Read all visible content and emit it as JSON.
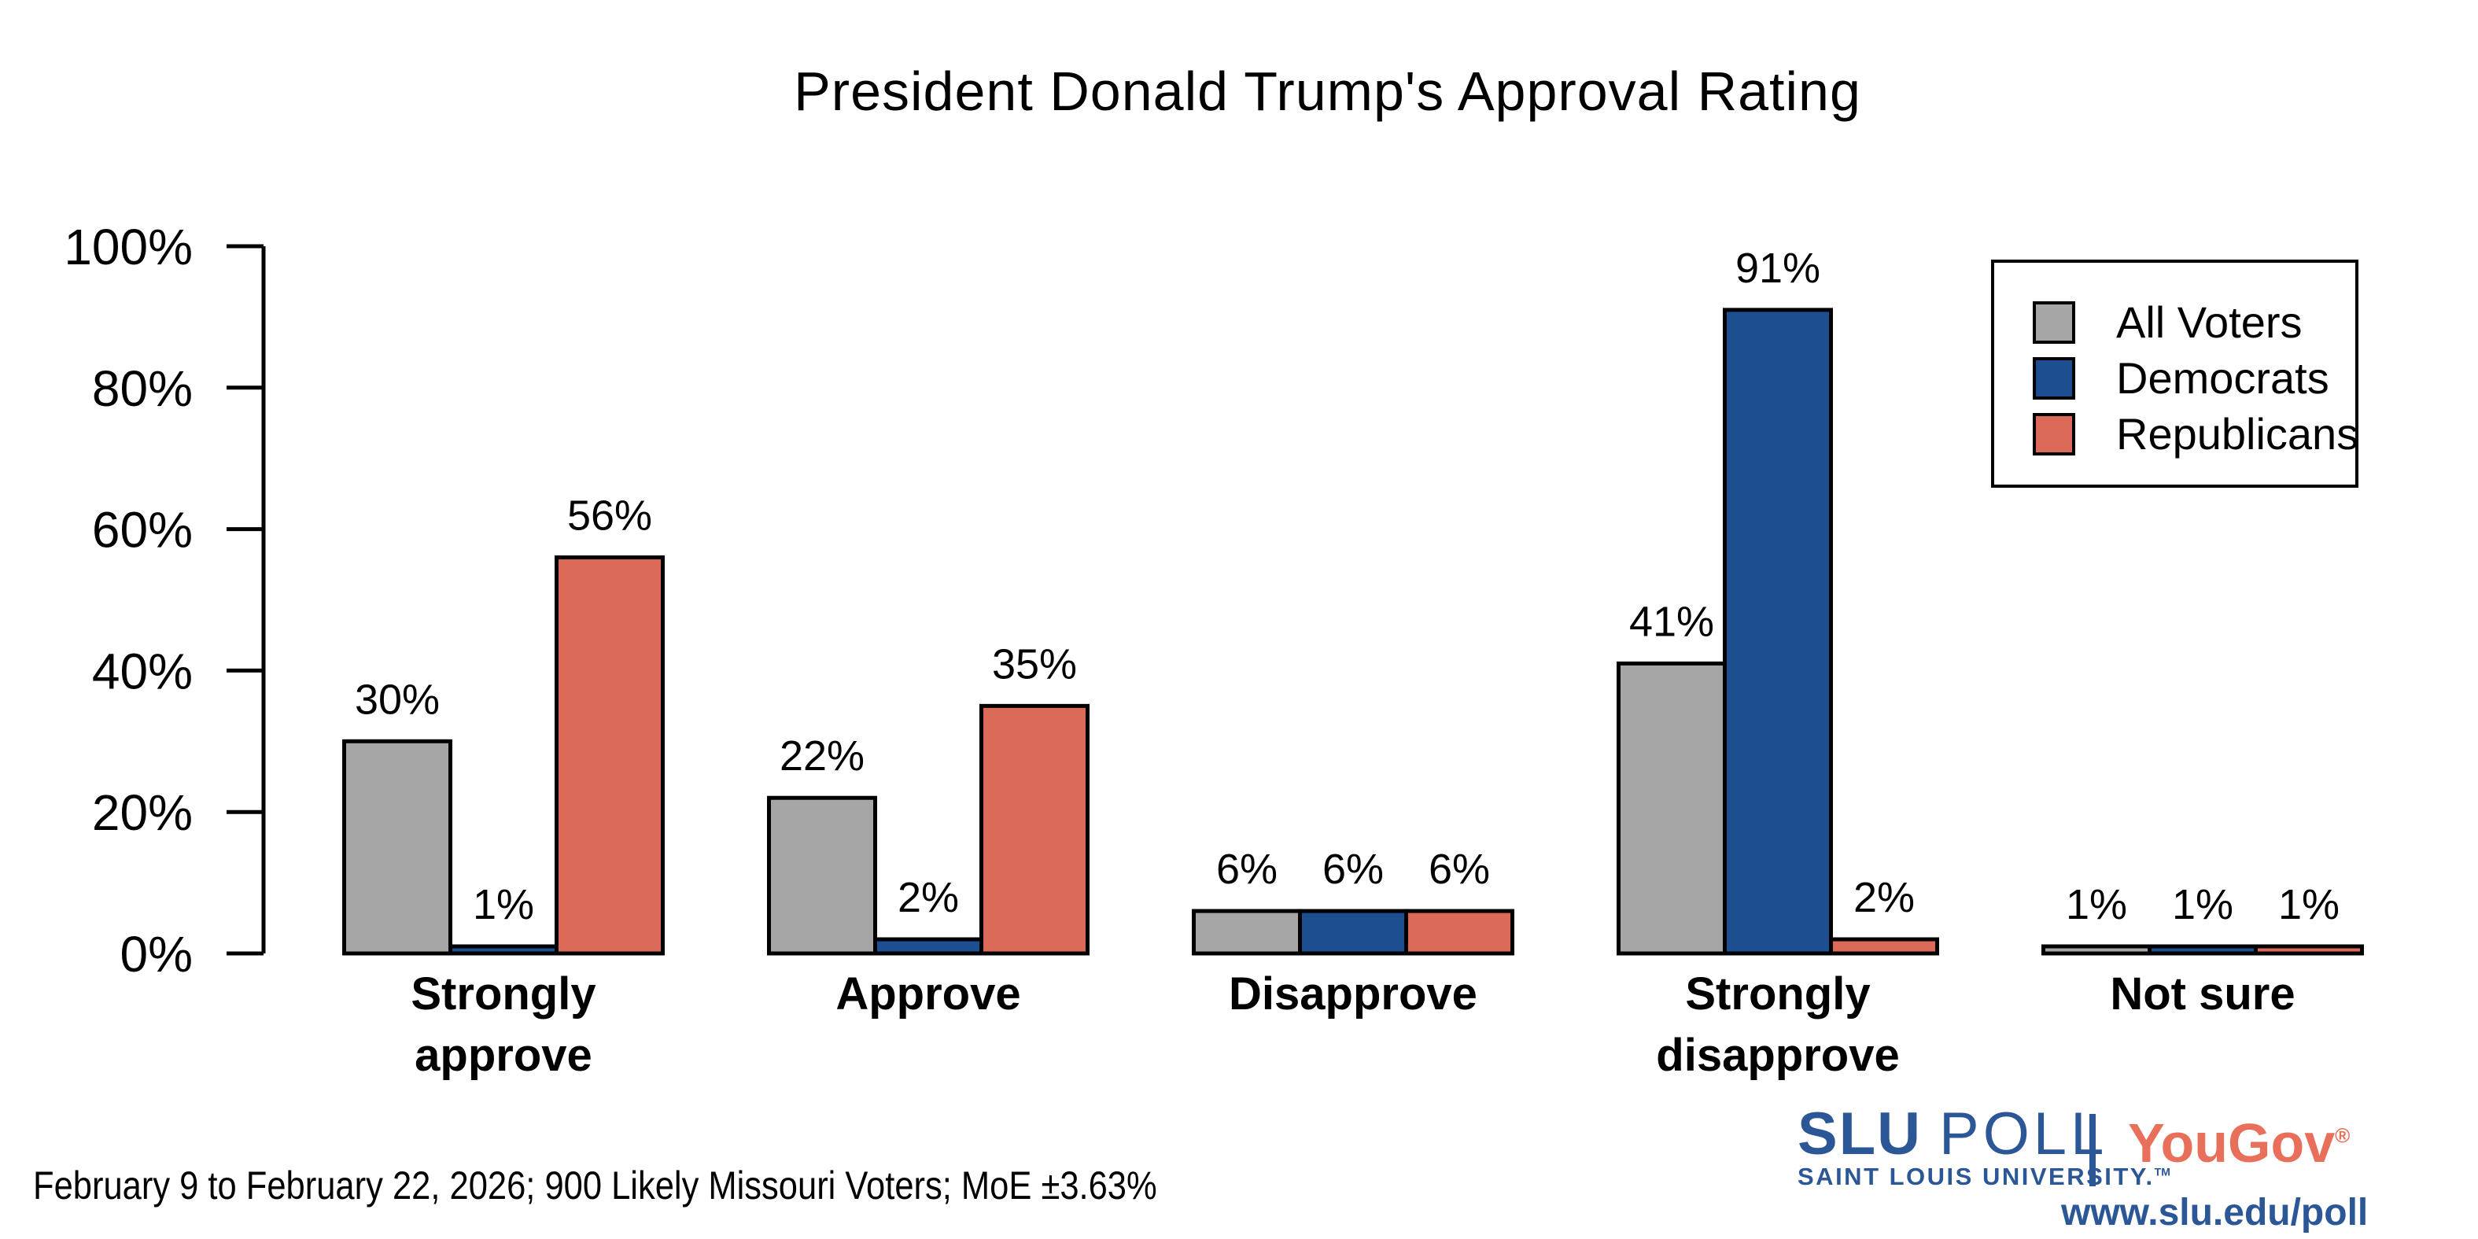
{
  "title": "President Donald Trump's Approval Rating",
  "caption": "February 9 to February 22, 2026; 900 Likely Missouri Voters; MoE ±3.63%",
  "legend": {
    "position": "top-right",
    "items": [
      {
        "label": "All Voters",
        "color": "#a6a6a6"
      },
      {
        "label": "Democrats",
        "color": "#1d4f90"
      },
      {
        "label": "Republicans",
        "color": "#dc6a58"
      }
    ]
  },
  "footer": {
    "slu_bold": "SLU",
    "slu_light": "POLL",
    "slu_subtitle": "SAINT LOUIS UNIVERSITY.",
    "slu_tm": "TM",
    "yougov": "YouGov",
    "yougov_reg": "®",
    "url": "www.slu.edu/poll",
    "slu_blue": "#2b5797",
    "yougov_red": "#e8705a"
  },
  "chart_data": {
    "type": "bar",
    "title": "President Donald Trump's Approval Rating",
    "categories": [
      "Strongly approve",
      "Approve",
      "Disapprove",
      "Strongly disapprove",
      "Not sure"
    ],
    "category_lines": [
      [
        "Strongly",
        "approve"
      ],
      [
        "Approve"
      ],
      [
        "Disapprove"
      ],
      [
        "Strongly",
        "disapprove"
      ],
      [
        "Not sure"
      ]
    ],
    "series": [
      {
        "name": "All Voters",
        "color": "#a6a6a6",
        "values": [
          30,
          22,
          6,
          41,
          1
        ]
      },
      {
        "name": "Democrats",
        "color": "#1d4f90",
        "values": [
          1,
          2,
          6,
          91,
          1
        ]
      },
      {
        "name": "Republicans",
        "color": "#dc6a58",
        "values": [
          56,
          35,
          6,
          2,
          1
        ]
      }
    ],
    "value_label_suffix": "%",
    "xlabel": "",
    "ylabel": "",
    "ylim": [
      0,
      100
    ],
    "yticks": [
      {
        "value": 0,
        "label": "0%"
      },
      {
        "value": 20,
        "label": "20%"
      },
      {
        "value": 40,
        "label": "40%"
      },
      {
        "value": 60,
        "label": "60%"
      },
      {
        "value": 80,
        "label": "80%"
      },
      {
        "value": 100,
        "label": "100%"
      }
    ],
    "grid": false,
    "bar_outline": "#000000",
    "legend_position": "top-right"
  }
}
